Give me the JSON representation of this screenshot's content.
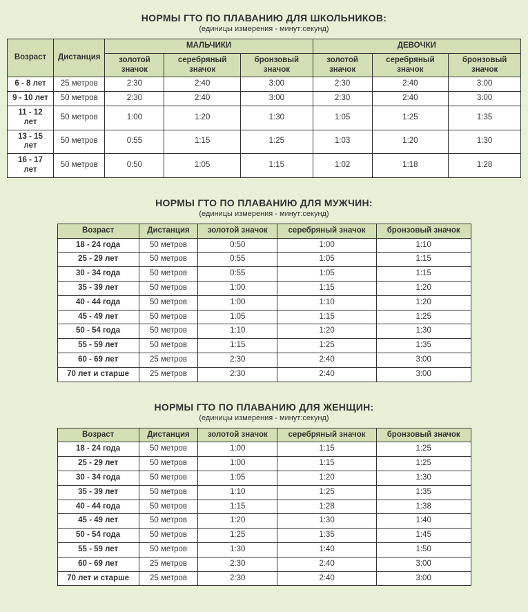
{
  "background_color": "#e8f0d8",
  "header_bg_color": "#d3e0b5",
  "cell_bg_color": "#ffffff",
  "border_color": "#333333",
  "title_fontsize": 14,
  "subtitle_fontsize": 11,
  "cell_fontsize": 11.5,
  "font_family": "Arial, sans-serif",
  "schoolchildren": {
    "title": "НОРМЫ ГТО ПО ПЛАВАНИЮ ДЛЯ ШКОЛЬНИКОВ:",
    "subtitle": "(единицы измерения - минут:секунд)",
    "type": "table",
    "columns": {
      "age": "Возраст",
      "distance": "Дистанция",
      "boys": "МАЛЬЧИКИ",
      "girls": "ДЕВОЧКИ",
      "gold": "золотой значок",
      "silver": "серебряный значок",
      "bronze": "бронзовый значок"
    },
    "rows": [
      {
        "age": "6 - 8 лет",
        "distance": "25 метров",
        "b_gold": "2:30",
        "b_silver": "2:40",
        "b_bronze": "3:00",
        "g_gold": "2:30",
        "g_silver": "2:40",
        "g_bronze": "3:00"
      },
      {
        "age": "9 - 10 лет",
        "distance": "50 метров",
        "b_gold": "2:30",
        "b_silver": "2:40",
        "b_bronze": "3:00",
        "g_gold": "2:30",
        "g_silver": "2:40",
        "g_bronze": "3:00"
      },
      {
        "age": "11 - 12 лет",
        "distance": "50 метров",
        "b_gold": "1:00",
        "b_silver": "1:20",
        "b_bronze": "1:30",
        "g_gold": "1:05",
        "g_silver": "1:25",
        "g_bronze": "1:35"
      },
      {
        "age": "13 - 15 лет",
        "distance": "50 метров",
        "b_gold": "0:55",
        "b_silver": "1:15",
        "b_bronze": "1:25",
        "g_gold": "1:03",
        "g_silver": "1:20",
        "g_bronze": "1:30"
      },
      {
        "age": "16 - 17 лет",
        "distance": "50 метров",
        "b_gold": "0:50",
        "b_silver": "1:05",
        "b_bronze": "1:15",
        "g_gold": "1:02",
        "g_silver": "1:18",
        "g_bronze": "1:28"
      }
    ]
  },
  "men": {
    "title": "НОРМЫ ГТО ПО ПЛАВАНИЮ ДЛЯ МУЖЧИН:",
    "subtitle": "(единицы измерения - минут:секунд)",
    "type": "table",
    "columns": {
      "age": "Возраст",
      "distance": "Дистанция",
      "gold": "золотой значок",
      "silver": "серебряный значок",
      "bronze": "бронзовый значок"
    },
    "rows": [
      {
        "age": "18 - 24 года",
        "distance": "50 метров",
        "gold": "0:50",
        "silver": "1:00",
        "bronze": "1:10"
      },
      {
        "age": "25 - 29 лет",
        "distance": "50 метров",
        "gold": "0:55",
        "silver": "1:05",
        "bronze": "1:15"
      },
      {
        "age": "30 - 34 года",
        "distance": "50 метров",
        "gold": "0:55",
        "silver": "1:05",
        "bronze": "1:15"
      },
      {
        "age": "35 - 39 лет",
        "distance": "50 метров",
        "gold": "1:00",
        "silver": "1:15",
        "bronze": "1:20"
      },
      {
        "age": "40 - 44 года",
        "distance": "50 метров",
        "gold": "1:00",
        "silver": "1:10",
        "bronze": "1:20"
      },
      {
        "age": "45 - 49 лет",
        "distance": "50 метров",
        "gold": "1:05",
        "silver": "1:15",
        "bronze": "1:25"
      },
      {
        "age": "50 - 54 года",
        "distance": "50 метров",
        "gold": "1:10",
        "silver": "1:20",
        "bronze": "1:30"
      },
      {
        "age": "55 - 59 лет",
        "distance": "50 метров",
        "gold": "1:15",
        "silver": "1:25",
        "bronze": "1:35"
      },
      {
        "age": "60 - 69 лет",
        "distance": "25 метров",
        "gold": "2:30",
        "silver": "2:40",
        "bronze": "3:00"
      },
      {
        "age": "70 лет и старше",
        "distance": "25 метров",
        "gold": "2:30",
        "silver": "2:40",
        "bronze": "3:00"
      }
    ]
  },
  "women": {
    "title": "НОРМЫ ГТО ПО ПЛАВАНИЮ ДЛЯ ЖЕНЩИН:",
    "subtitle": "(единицы измерения - минут:секунд)",
    "type": "table",
    "columns": {
      "age": "Возраст",
      "distance": "Дистанция",
      "gold": "золотой значок",
      "silver": "серебряный значок",
      "bronze": "бронзовый значок"
    },
    "rows": [
      {
        "age": "18 - 24 года",
        "distance": "50 метров",
        "gold": "1:00",
        "silver": "1:15",
        "bronze": "1:25"
      },
      {
        "age": "25 - 29 лет",
        "distance": "50 метров",
        "gold": "1:00",
        "silver": "1:15",
        "bronze": "1:25"
      },
      {
        "age": "30 - 34 года",
        "distance": "50 метров",
        "gold": "1:05",
        "silver": "1:20",
        "bronze": "1:30"
      },
      {
        "age": "35 - 39 лет",
        "distance": "50 метров",
        "gold": "1:10",
        "silver": "1:25",
        "bronze": "1:35"
      },
      {
        "age": "40 - 44 года",
        "distance": "50 метров",
        "gold": "1:15",
        "silver": "1:28",
        "bronze": "1:38"
      },
      {
        "age": "45 - 49 лет",
        "distance": "50 метров",
        "gold": "1:20",
        "silver": "1:30",
        "bronze": "1:40"
      },
      {
        "age": "50 - 54 года",
        "distance": "50 метров",
        "gold": "1:25",
        "silver": "1:35",
        "bronze": "1:45"
      },
      {
        "age": "55 - 59 лет",
        "distance": "50 метров",
        "gold": "1:30",
        "silver": "1:40",
        "bronze": "1:50"
      },
      {
        "age": "60 - 69 лет",
        "distance": "25 метров",
        "gold": "2:30",
        "silver": "2:40",
        "bronze": "3:00"
      },
      {
        "age": "70 лет и старше",
        "distance": "25 метров",
        "gold": "2:30",
        "silver": "2:40",
        "bronze": "3:00"
      }
    ]
  }
}
